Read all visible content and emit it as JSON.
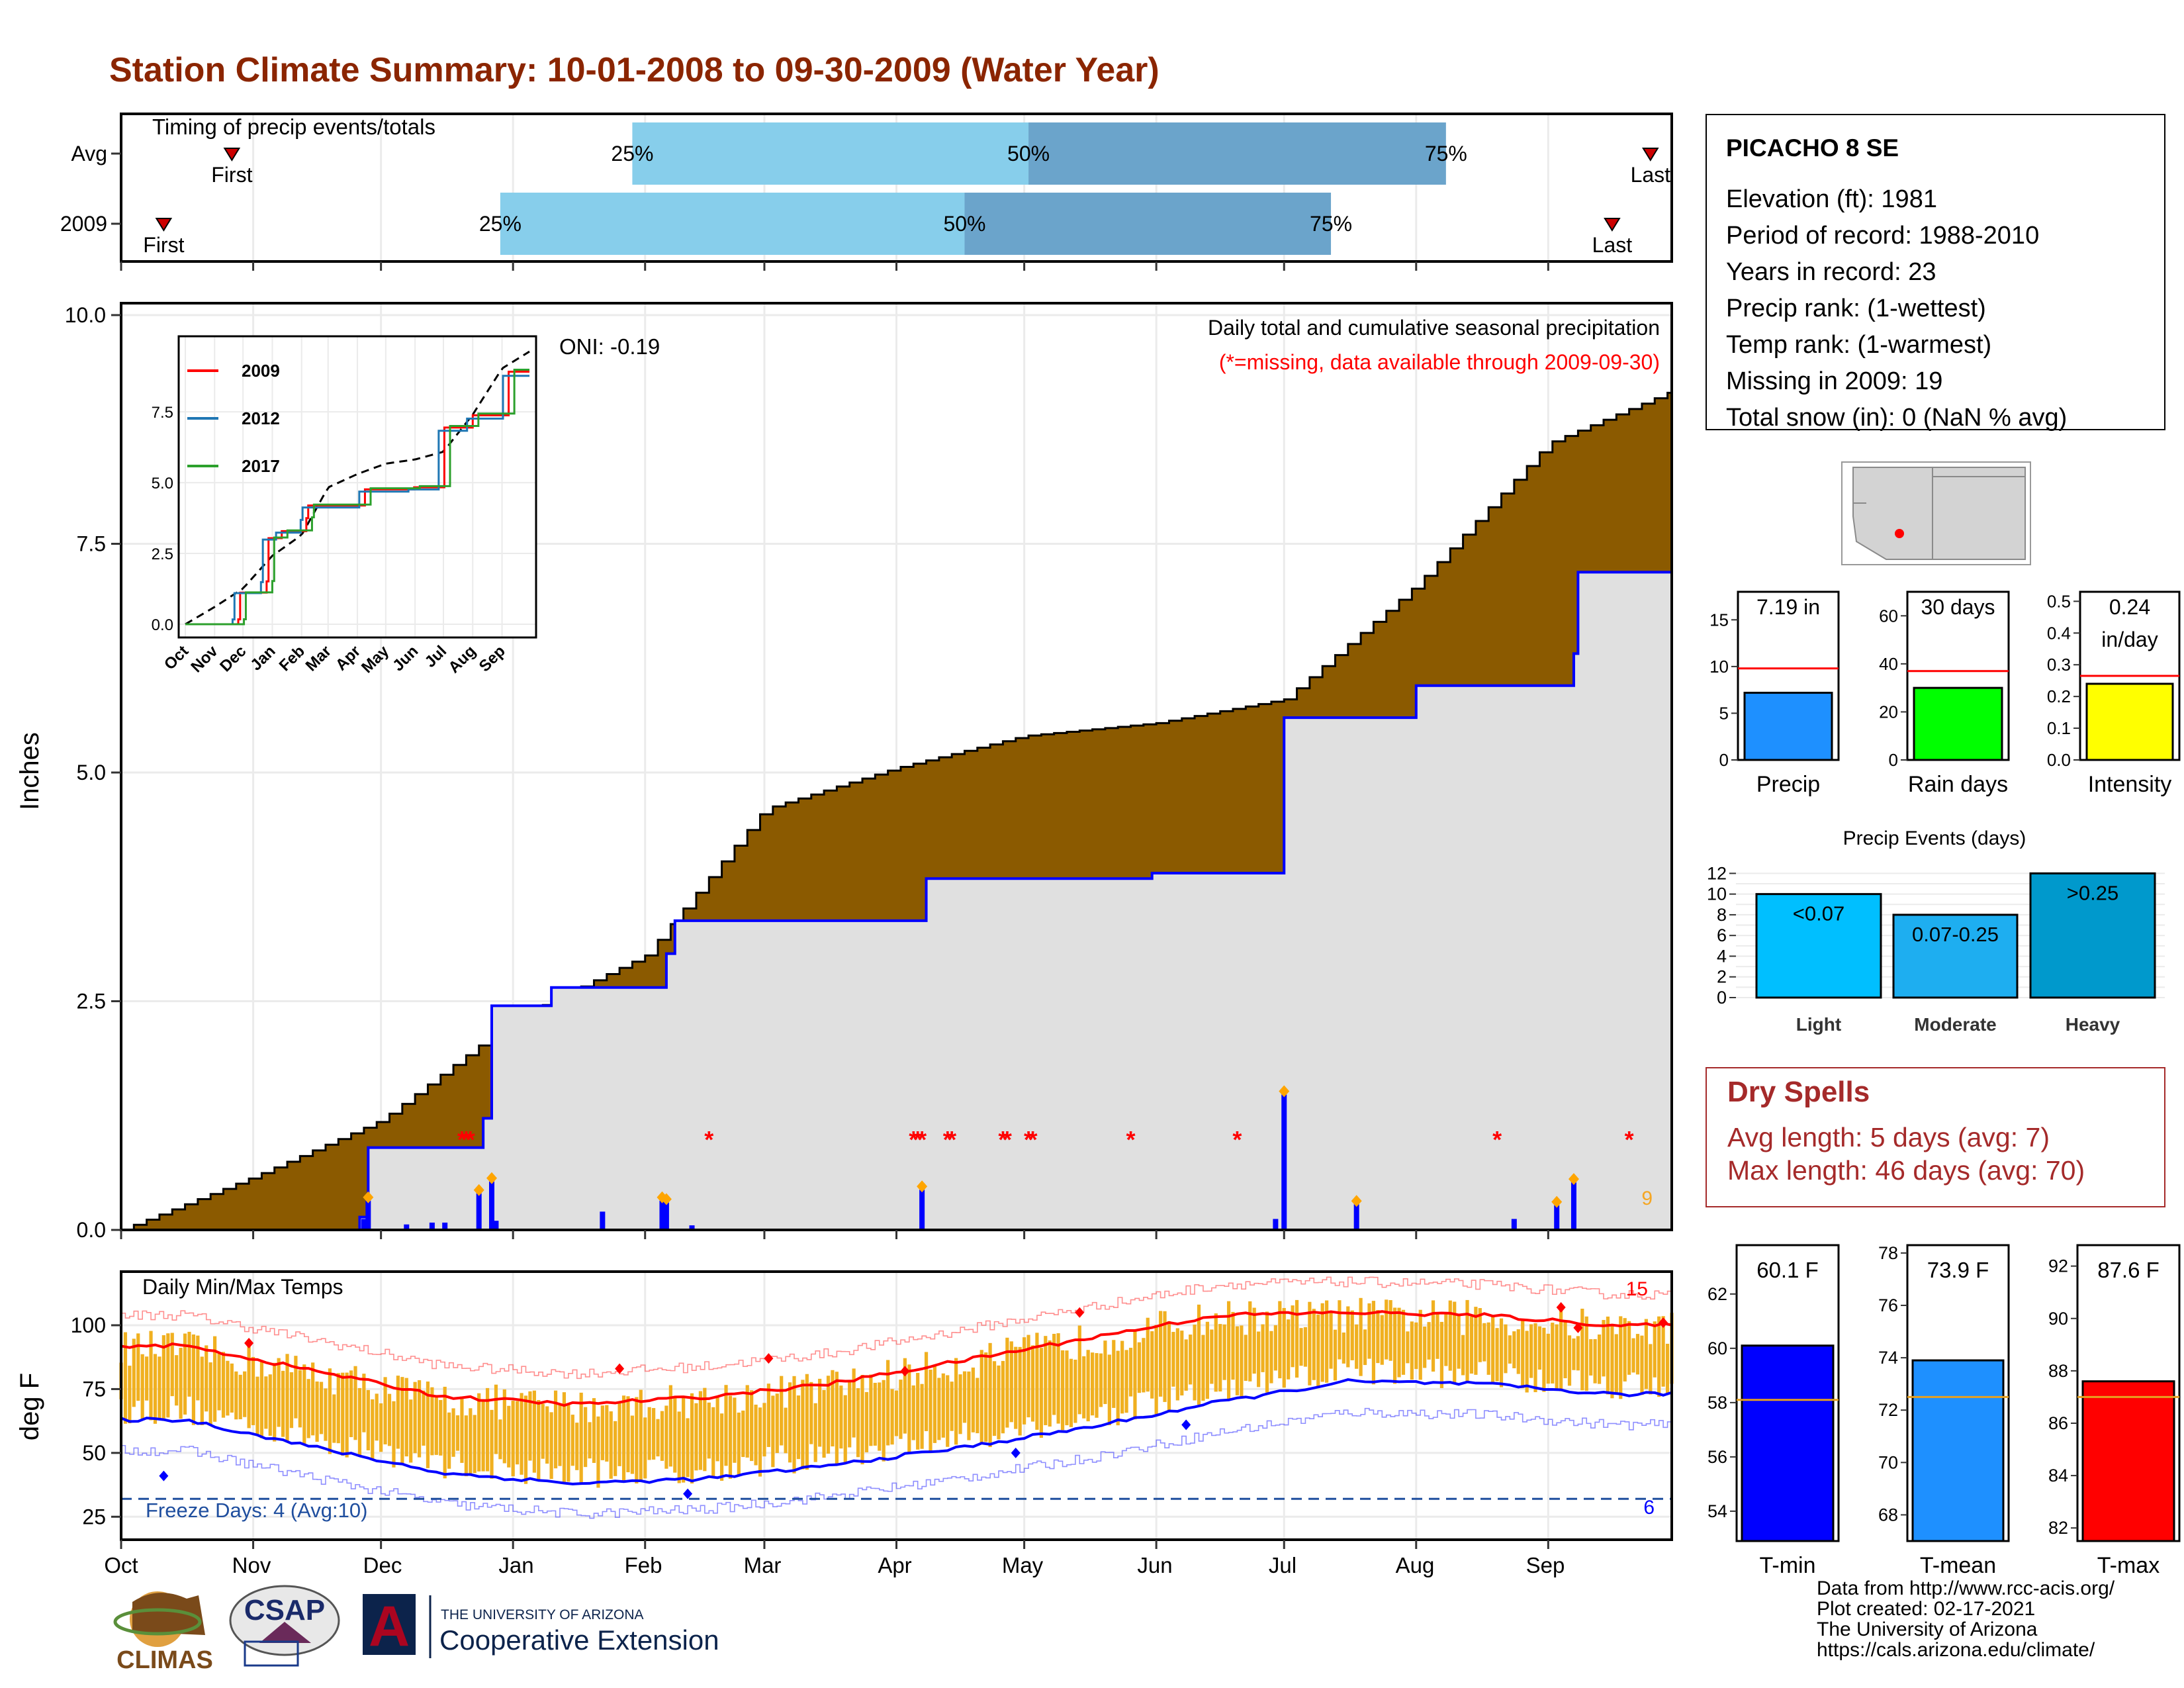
{
  "title": "Station Climate Summary: 10-01-2008 to 09-30-2009 (Water Year)",
  "colors": {
    "title": "#8b2500",
    "brown": "#8b5a00",
    "normalFill": "#e0e0e0",
    "blue": "#0000ff",
    "gold": "#f0b020",
    "red": "#ff0000",
    "darkred": "#a52a2a",
    "freezeLine": "#1f4e9e"
  },
  "months": [
    "Oct",
    "Nov",
    "Dec",
    "Jan",
    "Feb",
    "Mar",
    "Apr",
    "May",
    "Jun",
    "Jul",
    "Aug",
    "Sep"
  ],
  "timing": {
    "title": "Timing of precip events/totals",
    "rows": [
      {
        "label": "Avg",
        "first_day": 26,
        "last_day": 359,
        "q25": 120,
        "q50": 213,
        "q75": 311
      },
      {
        "label": "2009",
        "first_day": 10,
        "last_day": 350,
        "q25": 89,
        "q50": 198,
        "q75": 284
      }
    ],
    "labels": {
      "first": "First",
      "last": "Last",
      "p25": "25%",
      "p50": "50%",
      "p75": "75%"
    }
  },
  "station": {
    "name": "PICACHO 8 SE",
    "lines": [
      "Elevation (ft): 1981",
      "Period of record: 1988-2010",
      "Years in record: 23",
      "Precip rank:  (1-wettest)",
      "Temp rank:  (1-warmest)",
      "Missing in 2009: 19",
      "Total snow (in): 0 (NaN % avg)"
    ]
  },
  "precip_panel": {
    "header": "Daily total and cumulative seasonal precipitation",
    "subheader": "(*=missing, data available through 2009-09-30)",
    "oni": "ONI: -0.19",
    "ylabel": "Inches",
    "yticks": [
      "0.0",
      "2.5",
      "5.0",
      "7.5",
      "10.0"
    ],
    "corner_count": "9"
  },
  "inset": {
    "legend": [
      "2009",
      "2012",
      "2017"
    ],
    "yticks": [
      "0.0",
      "2.5",
      "5.0",
      "7.5"
    ],
    "xticks": [
      "Oct",
      "Nov",
      "Dec",
      "Jan",
      "Feb",
      "Mar",
      "Apr",
      "May",
      "Jun",
      "Jul",
      "Aug",
      "Sep"
    ]
  },
  "temp_panel": {
    "title": "Daily Min/Max Temps",
    "ylabel": "deg F",
    "yticks": [
      "25",
      "50",
      "75",
      "100"
    ],
    "freeze_label": "Freeze Days: 4 (Avg:10)",
    "hot_count": "15",
    "cold_count": "6"
  },
  "bar_panels": {
    "precip": {
      "label": "Precip",
      "value_label": "7.19 in",
      "value": 7.19,
      "avg": 9.8,
      "yticks": [
        "0",
        "5",
        "10",
        "15"
      ],
      "ymax": 18,
      "color": "#1e90ff"
    },
    "raindays": {
      "label": "Rain days",
      "value_label": "30 days",
      "value": 30,
      "avg": 37,
      "yticks": [
        "0",
        "20",
        "40",
        "60"
      ],
      "ymax": 70,
      "color": "#00ff00"
    },
    "intensity": {
      "label": "Intensity",
      "value_label": "0.24\nin/day",
      "value": 0.24,
      "avg": 0.265,
      "yticks": [
        "0.0",
        "0.1",
        "0.2",
        "0.3",
        "0.4",
        "0.5"
      ],
      "ymax": 0.53,
      "color": "#ffff00"
    }
  },
  "events": {
    "title": "Precip Events (days)",
    "categories": [
      "Light",
      "Moderate",
      "Heavy"
    ],
    "bar_labels": [
      "<0.07",
      "0.07-0.25",
      ">0.25"
    ],
    "values": [
      10,
      8,
      12
    ],
    "yticks": [
      "0",
      "2",
      "4",
      "6",
      "8",
      "10",
      "12"
    ]
  },
  "dry_spells": {
    "title": "Dry Spells",
    "avg": "Avg length: 5 days (avg: 7)",
    "max": "Max length: 46 days (avg: 70)"
  },
  "temp_bars": {
    "tmin": {
      "label": "T-min",
      "value_label": "60.1 F",
      "value": 60.1,
      "avg": 58.1,
      "yticks": [
        "54",
        "56",
        "58",
        "60",
        "62"
      ],
      "ymin": 52.9,
      "ymax": 63.8
    },
    "tmean": {
      "label": "T-mean",
      "value_label": "73.9 F",
      "value": 73.9,
      "avg": 72.5,
      "yticks": [
        "68",
        "70",
        "72",
        "74",
        "76",
        "78"
      ],
      "ymin": 67,
      "ymax": 78.3
    },
    "tmax": {
      "label": "T-max",
      "value_label": "87.6 F",
      "value": 87.6,
      "avg": 87.0,
      "yticks": [
        "82",
        "84",
        "86",
        "88",
        "90",
        "92"
      ],
      "ymin": 81.5,
      "ymax": 92.8
    }
  },
  "logos": {
    "climas": "CLIMAS",
    "csap": "CSAP",
    "ua_top": "THE UNIVERSITY OF ARIZONA",
    "ua_bottom": "Cooperative Extension",
    "ua_mark": "A"
  },
  "credits": [
    "Data from http://www.rcc-acis.org/",
    "Plot created: 02-17-2021",
    "The University of Arizona",
    "https://cals.arizona.edu/climate/"
  ],
  "chart_data": [
    {
      "type": "area",
      "title": "Daily total and cumulative seasonal precipitation",
      "ylabel": "Inches",
      "ylim": [
        0,
        10
      ],
      "series": [
        {
          "name": "2009",
          "x": [
            "2008-10-01",
            "2008-11-26",
            "2008-11-28",
            "2008-12-25",
            "2008-12-27",
            "2009-01-10",
            "2009-02-01",
            "2009-02-06",
            "2009-02-08",
            "2009-04-07",
            "2009-04-08",
            "2009-05-31",
            "2009-06-30",
            "2009-07-01",
            "2009-08-01",
            "2009-09-07",
            "2009-09-08",
            "2009-09-30"
          ],
          "values": [
            0.0,
            0.14,
            0.9,
            1.22,
            2.45,
            2.65,
            2.65,
            3.02,
            3.38,
            3.38,
            3.84,
            3.9,
            3.9,
            5.6,
            5.95,
            6.3,
            7.19,
            7.19
          ]
        },
        {
          "name": "Avg",
          "x": [
            "2008-10-01",
            "2008-11-01",
            "2008-12-01",
            "2009-01-01",
            "2009-02-01",
            "2009-03-01",
            "2009-04-01",
            "2009-05-01",
            "2009-06-01",
            "2009-07-01",
            "2009-08-01",
            "2009-09-01",
            "2009-09-30"
          ],
          "values": [
            0.0,
            0.58,
            1.2,
            2.3,
            3.0,
            4.6,
            5.05,
            5.4,
            5.54,
            5.8,
            7.05,
            8.6,
            9.17
          ]
        }
      ],
      "daily_precip": {
        "x": [
          "2008-11-27",
          "2008-11-28",
          "2008-12-07",
          "2008-12-13",
          "2008-12-16",
          "2008-12-24",
          "2008-12-27",
          "2008-12-28",
          "2009-01-22",
          "2009-02-05",
          "2009-02-06",
          "2009-02-12",
          "2009-04-07",
          "2009-05-30",
          "2009-06-29",
          "2009-07-01",
          "2009-07-18",
          "2009-08-24",
          "2009-09-03",
          "2009-09-07"
        ],
        "values": [
          0.12,
          0.32,
          0.06,
          0.08,
          0.08,
          0.4,
          0.53,
          0.1,
          0.2,
          0.32,
          0.3,
          0.05,
          0.44,
          0.01,
          0.12,
          1.48,
          0.28,
          0.12,
          0.27,
          0.52
        ]
      },
      "missing_dates": [
        "2008-12-20",
        "2008-12-21",
        "2008-12-22",
        "2009-02-16",
        "2009-04-05",
        "2009-04-06",
        "2009-04-07",
        "2009-04-13",
        "2009-04-14",
        "2009-04-26",
        "2009-04-27",
        "2009-05-02",
        "2009-05-03",
        "2009-05-26",
        "2009-06-20",
        "2009-08-20",
        "2009-09-20"
      ]
    },
    {
      "type": "line",
      "title": "Daily Min/Max Temps",
      "ylabel": "deg F",
      "ylim": [
        16,
        121
      ],
      "series": [
        {
          "name": "Avg max",
          "x": [
            "Oct",
            "Nov",
            "Dec",
            "Jan",
            "Feb",
            "Mar",
            "Apr",
            "May",
            "Jun",
            "Jul",
            "Aug",
            "Sep"
          ],
          "values": [
            92,
            82,
            72,
            69,
            72,
            77,
            86,
            95,
            104,
            105,
            104,
            100
          ]
        },
        {
          "name": "Avg min",
          "x": [
            "Oct",
            "Nov",
            "Dec",
            "Jan",
            "Feb",
            "Mar",
            "Apr",
            "May",
            "Jun",
            "Jul",
            "Aug",
            "Sep"
          ],
          "values": [
            63,
            52,
            42,
            38,
            40,
            45,
            52,
            60,
            70,
            78,
            77,
            73
          ]
        }
      ]
    },
    {
      "type": "bar",
      "title": "Precip Events (days)",
      "categories": [
        "Light",
        "Moderate",
        "Heavy"
      ],
      "values": [
        10,
        8,
        12
      ]
    },
    {
      "type": "bar",
      "categories": [
        "Precip",
        "Rain days",
        "Intensity"
      ],
      "values": [
        7.19,
        30,
        0.24
      ]
    },
    {
      "type": "bar",
      "categories": [
        "T-min",
        "T-mean",
        "T-max"
      ],
      "values": [
        60.1,
        73.9,
        87.6
      ]
    }
  ]
}
